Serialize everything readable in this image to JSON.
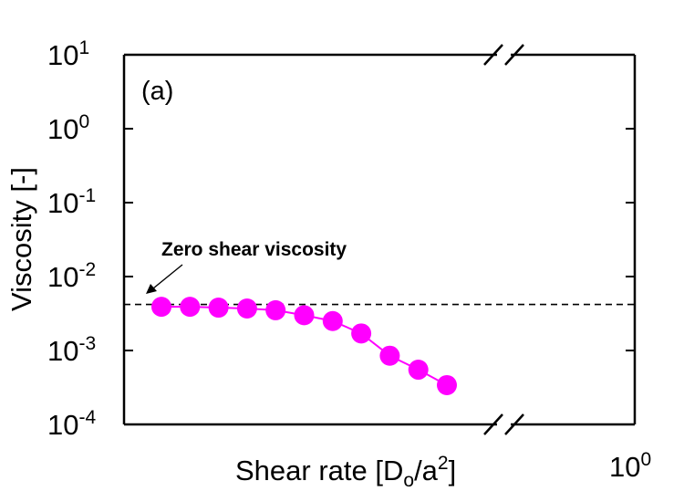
{
  "chart_data": {
    "type": "scatter",
    "panel_label": "(a)",
    "xlabel": {
      "main": "Shear rate [D",
      "sub": "o",
      "mid": "/a",
      "sup": "2",
      "end": "]"
    },
    "ylabel": "Viscosity [-]",
    "y_scale": "log",
    "ylim": [
      0.0001,
      10
    ],
    "y_ticks": [
      {
        "base": "10",
        "exp": "1",
        "value": 10
      },
      {
        "base": "10",
        "exp": "0",
        "value": 1
      },
      {
        "base": "10",
        "exp": "-1",
        "value": 0.1
      },
      {
        "base": "10",
        "exp": "-2",
        "value": 0.01
      },
      {
        "base": "10",
        "exp": "-3",
        "value": 0.001
      },
      {
        "base": "10",
        "exp": "-4",
        "value": 0.0001
      }
    ],
    "x_tick_right": {
      "base": "10",
      "exp": "0"
    },
    "axis_break": true,
    "grid": false,
    "series": [
      {
        "color": "#ff00ff",
        "y": [
          0.0039,
          0.0039,
          0.0038,
          0.0037,
          0.0035,
          0.003,
          0.0025,
          0.0017,
          0.00085,
          0.00055,
          0.00034
        ]
      }
    ],
    "reference_line": {
      "value": 0.0042,
      "style": "dashed",
      "color": "#000000"
    },
    "annotation": {
      "text": "Zero shear viscosity",
      "arrow": true
    }
  }
}
